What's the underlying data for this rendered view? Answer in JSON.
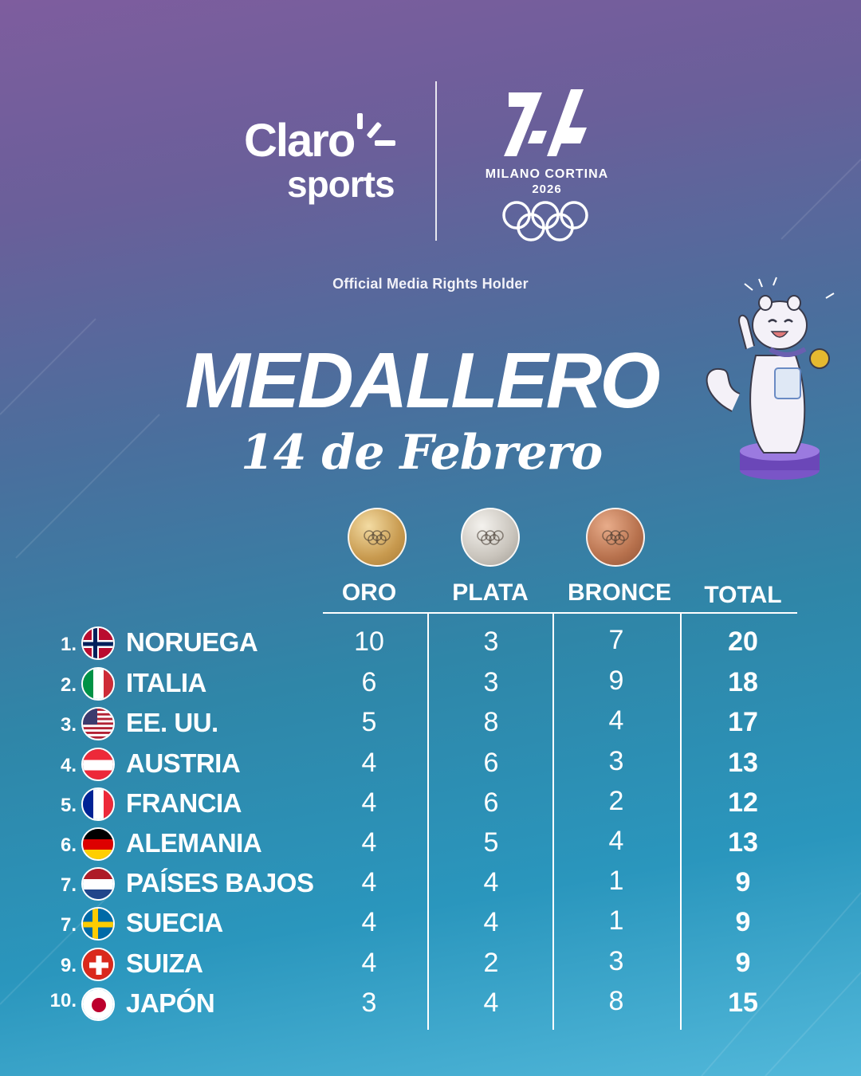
{
  "header": {
    "brand_line1": "Claro",
    "brand_line2": "sports",
    "games_name": "MILANO CORTINA",
    "games_year": "2026",
    "rights_text": "Official Media Rights Holder"
  },
  "title": "MEDALLERO",
  "subtitle": "14 de Febrero",
  "columns": {
    "gold": "ORO",
    "silver": "PLATA",
    "bronze": "BRONCE",
    "total": "TOTAL"
  },
  "colors": {
    "gold": "#c89a4f",
    "silver": "#c9c4bc",
    "bronze": "#b7714d"
  },
  "rows": [
    {
      "rank": "1.",
      "country": "NORUEGA",
      "flag": "norway-flag",
      "gold": "10",
      "silver": "3",
      "bronze": "7",
      "total": "20"
    },
    {
      "rank": "2.",
      "country": "ITALIA",
      "flag": "italy-flag",
      "gold": "6",
      "silver": "3",
      "bronze": "9",
      "total": "18"
    },
    {
      "rank": "3.",
      "country": "EE. UU.",
      "flag": "usa-flag",
      "gold": "5",
      "silver": "8",
      "bronze": "4",
      "total": "17"
    },
    {
      "rank": "4.",
      "country": "AUSTRIA",
      "flag": "austria-flag",
      "gold": "4",
      "silver": "6",
      "bronze": "3",
      "total": "13"
    },
    {
      "rank": "5.",
      "country": "FRANCIA",
      "flag": "france-flag",
      "gold": "4",
      "silver": "6",
      "bronze": "2",
      "total": "12"
    },
    {
      "rank": "6.",
      "country": "ALEMANIA",
      "flag": "germany-flag",
      "gold": "4",
      "silver": "5",
      "bronze": "4",
      "total": "13"
    },
    {
      "rank": "7.",
      "country": "PAÍSES BAJOS",
      "flag": "netherlands-flag",
      "gold": "4",
      "silver": "4",
      "bronze": "1",
      "total": "9"
    },
    {
      "rank": "7.",
      "country": "SUECIA",
      "flag": "sweden-flag",
      "gold": "4",
      "silver": "4",
      "bronze": "1",
      "total": "9"
    },
    {
      "rank": "9.",
      "country": "SUIZA",
      "flag": "switzerland-flag",
      "gold": "4",
      "silver": "2",
      "bronze": "3",
      "total": "9"
    },
    {
      "rank": "10.",
      "country": "JAPÓN",
      "flag": "japan-flag",
      "gold": "3",
      "silver": "4",
      "bronze": "8",
      "total": "15"
    }
  ]
}
